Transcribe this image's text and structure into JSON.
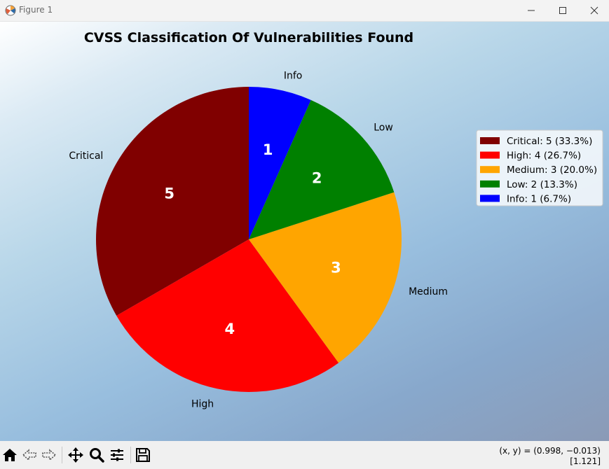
{
  "window": {
    "title": "Figure 1"
  },
  "chart_data": {
    "type": "pie",
    "title": "CVSS Classification Of Vulnerabilities Found",
    "labels": [
      "Critical",
      "High",
      "Medium",
      "Low",
      "Info"
    ],
    "values": [
      5,
      4,
      3,
      2,
      1
    ],
    "colors": [
      "#800000",
      "#ff0000",
      "#ffa500",
      "#008000",
      "#0000ff"
    ],
    "start_angle_deg": 90,
    "direction": "counterclockwise",
    "legend": {
      "placement": "right",
      "entries": [
        "Critical: 5 (33.3%)",
        "High: 4 (26.7%)",
        "Medium: 3 (20.0%)",
        "Low: 2 (13.3%)",
        "Info: 1 (6.7%)"
      ]
    }
  },
  "toolbar": {
    "icons": [
      "home-icon",
      "back-icon",
      "forward-icon",
      "pan-icon",
      "zoom-icon",
      "configure-subplots-icon",
      "save-icon"
    ],
    "coords_line1": "(x, y) = (0.998, −0.013)",
    "coords_line2": "[1.121]"
  }
}
